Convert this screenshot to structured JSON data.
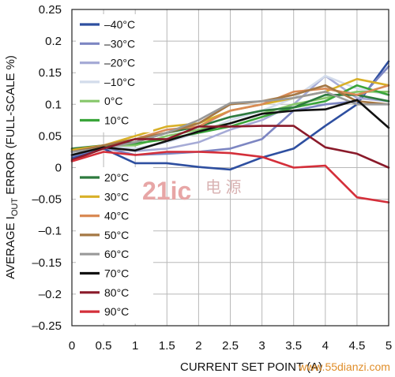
{
  "chart_data": {
    "type": "line",
    "xlabel": "CURRENT SET POINT (A)",
    "ylabel": "AVERAGE I_OUT ERROR (FULL-SCALE %)",
    "ylabel_parts": [
      "AVERAGE I",
      "OUT",
      " ERROR (FULL-SCALE %)"
    ],
    "xlim": [
      0,
      5
    ],
    "ylim": [
      -0.25,
      0.25
    ],
    "grid": true,
    "x_ticks": [
      0,
      0.5,
      1,
      1.5,
      2,
      2.5,
      3,
      3.5,
      4,
      4.5,
      5
    ],
    "x_tick_labels": [
      "0",
      "0.5",
      "1",
      "1.5",
      "2",
      "2.5",
      "3",
      "3.5",
      "4",
      "4.5",
      "5"
    ],
    "y_ticks": [
      0.25,
      0.2,
      0.15,
      0.1,
      0.05,
      0,
      -0.05,
      -0.1,
      -0.15,
      -0.2,
      -0.25
    ],
    "y_tick_labels": [
      "0.25",
      "0.2",
      "0.15",
      "0.1",
      "0.05",
      "0",
      "–0.05",
      "–0.1",
      "–0.15",
      "–0.2",
      "–0.25"
    ],
    "x": [
      0,
      0.5,
      1,
      1.5,
      2,
      2.5,
      3,
      3.5,
      4,
      4.5,
      5
    ],
    "series": [
      {
        "name": "–40°C",
        "color": "#2e4fa0",
        "values": [
          0.015,
          0.03,
          0.007,
          0.007,
          0.001,
          -0.003,
          0.016,
          0.03,
          0.066,
          0.1,
          0.168
        ]
      },
      {
        "name": "–30°C",
        "color": "#7d86c2",
        "values": [
          0.018,
          0.032,
          0.02,
          0.022,
          0.025,
          0.03,
          0.045,
          0.09,
          0.1,
          0.105,
          0.16
        ]
      },
      {
        "name": "–20°C",
        "color": "#a6abd6",
        "values": [
          0.02,
          0.034,
          0.026,
          0.03,
          0.04,
          0.06,
          0.075,
          0.1,
          0.145,
          0.11,
          0.105
        ]
      },
      {
        "name": "–10°C",
        "color": "#d3dceb",
        "values": [
          0.022,
          0.035,
          0.03,
          0.04,
          0.055,
          0.075,
          0.09,
          0.11,
          0.145,
          0.125,
          0.115
        ]
      },
      {
        "name": "0°C",
        "color": "#86c76a",
        "values": [
          0.025,
          0.035,
          0.035,
          0.05,
          0.06,
          0.07,
          0.085,
          0.1,
          0.11,
          0.12,
          0.12
        ]
      },
      {
        "name": "10°C",
        "color": "#3aa53a",
        "values": [
          0.028,
          0.035,
          0.038,
          0.045,
          0.055,
          0.065,
          0.08,
          0.095,
          0.105,
          0.13,
          0.115
        ]
      },
      {
        "name": "20°C",
        "color": "#2d7a3e",
        "values": [
          0.03,
          0.035,
          0.04,
          0.055,
          0.065,
          0.08,
          0.09,
          0.095,
          0.115,
          0.115,
          0.105
        ]
      },
      {
        "name": "30°C",
        "color": "#d8b028",
        "values": [
          0.028,
          0.035,
          0.05,
          0.065,
          0.07,
          0.09,
          0.1,
          0.11,
          0.12,
          0.14,
          0.13
        ]
      },
      {
        "name": "40°C",
        "color": "#d98a55",
        "values": [
          0.025,
          0.035,
          0.045,
          0.06,
          0.065,
          0.09,
          0.1,
          0.12,
          0.125,
          0.115,
          0.13
        ]
      },
      {
        "name": "50°C",
        "color": "#a57845",
        "values": [
          0.025,
          0.035,
          0.045,
          0.055,
          0.07,
          0.1,
          0.105,
          0.115,
          0.13,
          0.105,
          0.1
        ]
      },
      {
        "name": "60°C",
        "color": "#9a9a9a",
        "values": [
          0.025,
          0.03,
          0.04,
          0.055,
          0.075,
          0.102,
          0.105,
          0.11,
          0.12,
          0.1,
          0.1
        ]
      },
      {
        "name": "70°C",
        "color": "#111111",
        "values": [
          0.02,
          0.032,
          0.027,
          0.042,
          0.057,
          0.07,
          0.085,
          0.09,
          0.092,
          0.107,
          0.063
        ]
      },
      {
        "name": "80°C",
        "color": "#8a1a2a",
        "values": [
          0.012,
          0.03,
          0.045,
          0.045,
          0.065,
          0.065,
          0.066,
          0.066,
          0.032,
          0.022,
          0.0
        ]
      },
      {
        "name": "90°C",
        "color": "#d42f3a",
        "values": [
          0.01,
          0.025,
          0.02,
          0.025,
          0.025,
          0.023,
          0.017,
          0.0,
          0.003,
          -0.047,
          -0.055
        ]
      }
    ]
  },
  "watermark": {
    "brand": "21ic",
    "brand_cn": "电 源",
    "url": "www.55dianzi.com"
  }
}
